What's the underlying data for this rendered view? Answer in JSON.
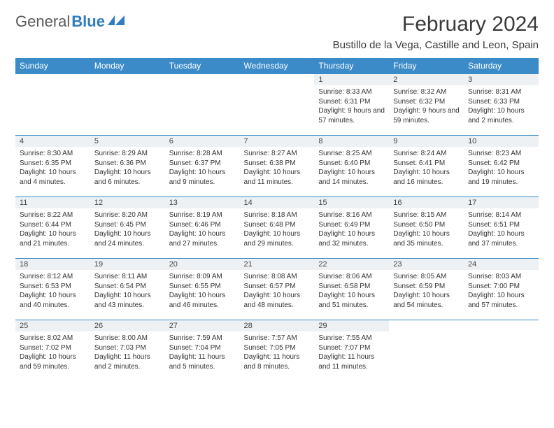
{
  "brand": {
    "part1": "General",
    "part2": "Blue"
  },
  "title": {
    "month": "February 2024",
    "location": "Bustillo de la Vega, Castille and Leon, Spain"
  },
  "colors": {
    "header_bg": "#3b8bc8",
    "header_text": "#ffffff",
    "daynum_bg": "#eef1f3",
    "row_border": "#3b8bc8",
    "text": "#333333",
    "logo_gray": "#5a5a5a",
    "logo_blue": "#2f7dc0"
  },
  "weekdays": [
    "Sunday",
    "Monday",
    "Tuesday",
    "Wednesday",
    "Thursday",
    "Friday",
    "Saturday"
  ],
  "layout": {
    "weeks": 5,
    "first_weekday_index": 4,
    "days_in_month": 29
  },
  "days": {
    "1": {
      "sunrise": "8:33 AM",
      "sunset": "6:31 PM",
      "daylight": "9 hours and 57 minutes."
    },
    "2": {
      "sunrise": "8:32 AM",
      "sunset": "6:32 PM",
      "daylight": "9 hours and 59 minutes."
    },
    "3": {
      "sunrise": "8:31 AM",
      "sunset": "6:33 PM",
      "daylight": "10 hours and 2 minutes."
    },
    "4": {
      "sunrise": "8:30 AM",
      "sunset": "6:35 PM",
      "daylight": "10 hours and 4 minutes."
    },
    "5": {
      "sunrise": "8:29 AM",
      "sunset": "6:36 PM",
      "daylight": "10 hours and 6 minutes."
    },
    "6": {
      "sunrise": "8:28 AM",
      "sunset": "6:37 PM",
      "daylight": "10 hours and 9 minutes."
    },
    "7": {
      "sunrise": "8:27 AM",
      "sunset": "6:38 PM",
      "daylight": "10 hours and 11 minutes."
    },
    "8": {
      "sunrise": "8:25 AM",
      "sunset": "6:40 PM",
      "daylight": "10 hours and 14 minutes."
    },
    "9": {
      "sunrise": "8:24 AM",
      "sunset": "6:41 PM",
      "daylight": "10 hours and 16 minutes."
    },
    "10": {
      "sunrise": "8:23 AM",
      "sunset": "6:42 PM",
      "daylight": "10 hours and 19 minutes."
    },
    "11": {
      "sunrise": "8:22 AM",
      "sunset": "6:44 PM",
      "daylight": "10 hours and 21 minutes."
    },
    "12": {
      "sunrise": "8:20 AM",
      "sunset": "6:45 PM",
      "daylight": "10 hours and 24 minutes."
    },
    "13": {
      "sunrise": "8:19 AM",
      "sunset": "6:46 PM",
      "daylight": "10 hours and 27 minutes."
    },
    "14": {
      "sunrise": "8:18 AM",
      "sunset": "6:48 PM",
      "daylight": "10 hours and 29 minutes."
    },
    "15": {
      "sunrise": "8:16 AM",
      "sunset": "6:49 PM",
      "daylight": "10 hours and 32 minutes."
    },
    "16": {
      "sunrise": "8:15 AM",
      "sunset": "6:50 PM",
      "daylight": "10 hours and 35 minutes."
    },
    "17": {
      "sunrise": "8:14 AM",
      "sunset": "6:51 PM",
      "daylight": "10 hours and 37 minutes."
    },
    "18": {
      "sunrise": "8:12 AM",
      "sunset": "6:53 PM",
      "daylight": "10 hours and 40 minutes."
    },
    "19": {
      "sunrise": "8:11 AM",
      "sunset": "6:54 PM",
      "daylight": "10 hours and 43 minutes."
    },
    "20": {
      "sunrise": "8:09 AM",
      "sunset": "6:55 PM",
      "daylight": "10 hours and 46 minutes."
    },
    "21": {
      "sunrise": "8:08 AM",
      "sunset": "6:57 PM",
      "daylight": "10 hours and 48 minutes."
    },
    "22": {
      "sunrise": "8:06 AM",
      "sunset": "6:58 PM",
      "daylight": "10 hours and 51 minutes."
    },
    "23": {
      "sunrise": "8:05 AM",
      "sunset": "6:59 PM",
      "daylight": "10 hours and 54 minutes."
    },
    "24": {
      "sunrise": "8:03 AM",
      "sunset": "7:00 PM",
      "daylight": "10 hours and 57 minutes."
    },
    "25": {
      "sunrise": "8:02 AM",
      "sunset": "7:02 PM",
      "daylight": "10 hours and 59 minutes."
    },
    "26": {
      "sunrise": "8:00 AM",
      "sunset": "7:03 PM",
      "daylight": "11 hours and 2 minutes."
    },
    "27": {
      "sunrise": "7:59 AM",
      "sunset": "7:04 PM",
      "daylight": "11 hours and 5 minutes."
    },
    "28": {
      "sunrise": "7:57 AM",
      "sunset": "7:05 PM",
      "daylight": "11 hours and 8 minutes."
    },
    "29": {
      "sunrise": "7:55 AM",
      "sunset": "7:07 PM",
      "daylight": "11 hours and 11 minutes."
    }
  },
  "labels": {
    "sunrise": "Sunrise: ",
    "sunset": "Sunset: ",
    "daylight": "Daylight: "
  }
}
